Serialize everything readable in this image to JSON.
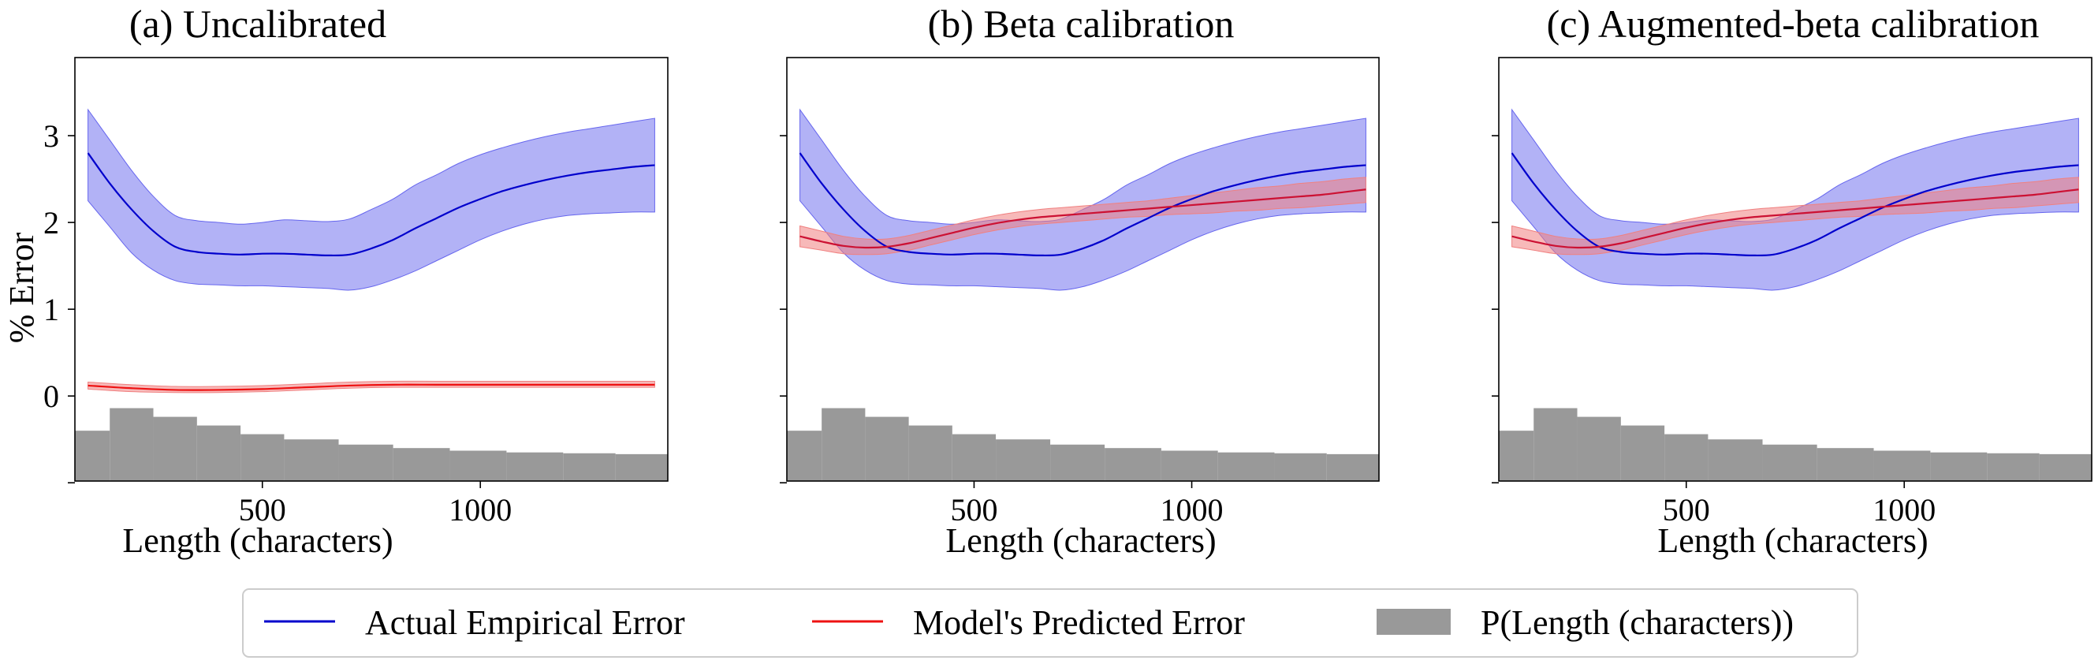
{
  "chart_data": [
    {
      "type": "line",
      "title": "(a) Uncalibrated",
      "xlabel": "Length (characters)",
      "ylabel": "% Error",
      "xlim": [
        70,
        1430
      ],
      "ylim": [
        -0.98,
        3.9
      ],
      "xticks": [
        500,
        1000
      ],
      "xtick_labels": [
        "500",
        "1000"
      ],
      "yticks": [
        -1,
        0,
        1,
        2,
        3
      ],
      "ytick_labels": [
        "",
        "0",
        "1",
        "2",
        "3"
      ],
      "series": [
        {
          "name": "Actual Empirical Error",
          "color": "#0000cc",
          "band_color": "#6666ee",
          "x": [
            100,
            150,
            200,
            250,
            300,
            350,
            400,
            450,
            500,
            550,
            600,
            650,
            700,
            750,
            800,
            850,
            900,
            950,
            1000,
            1050,
            1100,
            1150,
            1200,
            1250,
            1300,
            1350,
            1400
          ],
          "y": [
            2.8,
            2.45,
            2.15,
            1.9,
            1.72,
            1.66,
            1.64,
            1.63,
            1.64,
            1.64,
            1.63,
            1.62,
            1.63,
            1.7,
            1.8,
            1.93,
            2.05,
            2.17,
            2.27,
            2.36,
            2.43,
            2.49,
            2.54,
            2.58,
            2.61,
            2.64,
            2.66
          ],
          "lower": [
            2.25,
            1.95,
            1.65,
            1.45,
            1.33,
            1.29,
            1.28,
            1.27,
            1.27,
            1.26,
            1.25,
            1.24,
            1.22,
            1.26,
            1.34,
            1.44,
            1.56,
            1.68,
            1.8,
            1.9,
            1.98,
            2.04,
            2.08,
            2.1,
            2.11,
            2.12,
            2.12
          ],
          "upper": [
            3.3,
            2.95,
            2.6,
            2.3,
            2.08,
            2.02,
            2.0,
            1.98,
            2.0,
            2.03,
            2.02,
            2.01,
            2.04,
            2.15,
            2.27,
            2.43,
            2.55,
            2.68,
            2.78,
            2.86,
            2.93,
            2.99,
            3.04,
            3.08,
            3.12,
            3.16,
            3.2
          ]
        },
        {
          "name": "Model's Predicted Error",
          "color": "#ee1111",
          "band_color": "#f08080",
          "x": [
            100,
            200,
            300,
            400,
            500,
            600,
            700,
            800,
            900,
            1000,
            1100,
            1200,
            1300,
            1400
          ],
          "y": [
            0.12,
            0.09,
            0.07,
            0.07,
            0.08,
            0.1,
            0.12,
            0.13,
            0.13,
            0.13,
            0.13,
            0.13,
            0.13,
            0.13
          ],
          "lower": [
            0.08,
            0.05,
            0.04,
            0.04,
            0.05,
            0.07,
            0.09,
            0.1,
            0.1,
            0.1,
            0.1,
            0.1,
            0.1,
            0.1
          ],
          "upper": [
            0.16,
            0.13,
            0.11,
            0.11,
            0.12,
            0.14,
            0.16,
            0.17,
            0.17,
            0.17,
            0.17,
            0.17,
            0.17,
            0.17
          ]
        }
      ],
      "histogram": {
        "name": "P(Length (characters))",
        "color": "#999999",
        "bin_edges": [
          70,
          150,
          250,
          350,
          450,
          550,
          675,
          800,
          930,
          1060,
          1190,
          1310,
          1430
        ],
        "values": [
          -0.4,
          -0.14,
          -0.24,
          -0.34,
          -0.44,
          -0.5,
          -0.56,
          -0.6,
          -0.63,
          -0.65,
          -0.66,
          -0.67
        ]
      }
    },
    {
      "type": "line",
      "title": "(b) Beta calibration",
      "xlabel": "Length (characters)",
      "ylabel": "",
      "xlim": [
        70,
        1430
      ],
      "ylim": [
        -0.98,
        3.9
      ],
      "xticks": [
        500,
        1000
      ],
      "xtick_labels": [
        "500",
        "1000"
      ],
      "yticks": [
        -1,
        0,
        1,
        2,
        3
      ],
      "ytick_labels": [
        "",
        "",
        "",
        "",
        ""
      ],
      "series": [
        {
          "name": "Actual Empirical Error",
          "color": "#0000cc",
          "band_color": "#6666ee",
          "x": [
            100,
            150,
            200,
            250,
            300,
            350,
            400,
            450,
            500,
            550,
            600,
            650,
            700,
            750,
            800,
            850,
            900,
            950,
            1000,
            1050,
            1100,
            1150,
            1200,
            1250,
            1300,
            1350,
            1400
          ],
          "y": [
            2.8,
            2.45,
            2.15,
            1.9,
            1.72,
            1.66,
            1.64,
            1.63,
            1.64,
            1.64,
            1.63,
            1.62,
            1.63,
            1.7,
            1.8,
            1.93,
            2.05,
            2.17,
            2.27,
            2.36,
            2.43,
            2.49,
            2.54,
            2.58,
            2.61,
            2.64,
            2.66
          ],
          "lower": [
            2.25,
            1.95,
            1.65,
            1.45,
            1.33,
            1.29,
            1.28,
            1.27,
            1.27,
            1.26,
            1.25,
            1.24,
            1.22,
            1.26,
            1.34,
            1.44,
            1.56,
            1.68,
            1.8,
            1.9,
            1.98,
            2.04,
            2.08,
            2.1,
            2.11,
            2.12,
            2.12
          ],
          "upper": [
            3.3,
            2.95,
            2.6,
            2.3,
            2.08,
            2.02,
            2.0,
            1.98,
            2.0,
            2.03,
            2.02,
            2.01,
            2.04,
            2.15,
            2.27,
            2.43,
            2.55,
            2.68,
            2.78,
            2.86,
            2.93,
            2.99,
            3.04,
            3.08,
            3.12,
            3.16,
            3.2
          ]
        },
        {
          "name": "Model's Predicted Error",
          "color": "#cc1133",
          "band_color": "#f08080",
          "x": [
            100,
            150,
            200,
            250,
            300,
            350,
            400,
            450,
            500,
            550,
            600,
            650,
            700,
            750,
            800,
            850,
            900,
            950,
            1000,
            1050,
            1100,
            1150,
            1200,
            1250,
            1300,
            1350,
            1400
          ],
          "y": [
            1.84,
            1.78,
            1.73,
            1.71,
            1.72,
            1.76,
            1.82,
            1.88,
            1.94,
            1.99,
            2.03,
            2.06,
            2.08,
            2.1,
            2.12,
            2.14,
            2.16,
            2.18,
            2.2,
            2.22,
            2.24,
            2.26,
            2.28,
            2.3,
            2.32,
            2.35,
            2.38
          ],
          "lower": [
            1.72,
            1.68,
            1.64,
            1.63,
            1.64,
            1.68,
            1.74,
            1.8,
            1.86,
            1.91,
            1.95,
            1.98,
            2.0,
            2.02,
            2.04,
            2.06,
            2.07,
            2.09,
            2.1,
            2.11,
            2.13,
            2.14,
            2.16,
            2.17,
            2.19,
            2.21,
            2.23
          ],
          "upper": [
            1.96,
            1.9,
            1.84,
            1.81,
            1.81,
            1.85,
            1.91,
            1.97,
            2.03,
            2.08,
            2.12,
            2.15,
            2.17,
            2.19,
            2.21,
            2.23,
            2.25,
            2.28,
            2.31,
            2.34,
            2.37,
            2.4,
            2.42,
            2.45,
            2.47,
            2.5,
            2.52
          ]
        }
      ],
      "histogram": {
        "name": "P(Length (characters))",
        "color": "#999999",
        "bin_edges": [
          70,
          150,
          250,
          350,
          450,
          550,
          675,
          800,
          930,
          1060,
          1190,
          1310,
          1430
        ],
        "values": [
          -0.4,
          -0.14,
          -0.24,
          -0.34,
          -0.44,
          -0.5,
          -0.56,
          -0.6,
          -0.63,
          -0.65,
          -0.66,
          -0.67
        ]
      }
    },
    {
      "type": "line",
      "title": "(c) Augmented-beta calibration",
      "xlabel": "Length (characters)",
      "ylabel": "",
      "xlim": [
        70,
        1430
      ],
      "ylim": [
        -0.98,
        3.9
      ],
      "xticks": [
        500,
        1000
      ],
      "xtick_labels": [
        "500",
        "1000"
      ],
      "yticks": [
        -1,
        0,
        1,
        2,
        3
      ],
      "ytick_labels": [
        "",
        "",
        "",
        "",
        ""
      ],
      "series": [
        {
          "name": "Actual Empirical Error",
          "color": "#0000cc",
          "band_color": "#6666ee",
          "x": [
            100,
            150,
            200,
            250,
            300,
            350,
            400,
            450,
            500,
            550,
            600,
            650,
            700,
            750,
            800,
            850,
            900,
            950,
            1000,
            1050,
            1100,
            1150,
            1200,
            1250,
            1300,
            1350,
            1400
          ],
          "y": [
            2.8,
            2.45,
            2.15,
            1.9,
            1.72,
            1.66,
            1.64,
            1.63,
            1.64,
            1.64,
            1.63,
            1.62,
            1.63,
            1.7,
            1.8,
            1.93,
            2.05,
            2.17,
            2.27,
            2.36,
            2.43,
            2.49,
            2.54,
            2.58,
            2.61,
            2.64,
            2.66
          ],
          "lower": [
            2.25,
            1.95,
            1.65,
            1.45,
            1.33,
            1.29,
            1.28,
            1.27,
            1.27,
            1.26,
            1.25,
            1.24,
            1.22,
            1.26,
            1.34,
            1.44,
            1.56,
            1.68,
            1.8,
            1.9,
            1.98,
            2.04,
            2.08,
            2.1,
            2.11,
            2.12,
            2.12
          ],
          "upper": [
            3.3,
            2.95,
            2.6,
            2.3,
            2.08,
            2.02,
            2.0,
            1.98,
            2.0,
            2.03,
            2.02,
            2.01,
            2.04,
            2.15,
            2.27,
            2.43,
            2.55,
            2.68,
            2.78,
            2.86,
            2.93,
            2.99,
            3.04,
            3.08,
            3.12,
            3.16,
            3.2
          ]
        },
        {
          "name": "Model's Predicted Error",
          "color": "#cc1133",
          "band_color": "#f08080",
          "x": [
            100,
            150,
            200,
            250,
            300,
            350,
            400,
            450,
            500,
            550,
            600,
            650,
            700,
            750,
            800,
            850,
            900,
            950,
            1000,
            1050,
            1100,
            1150,
            1200,
            1250,
            1300,
            1350,
            1400
          ],
          "y": [
            1.84,
            1.78,
            1.73,
            1.71,
            1.72,
            1.76,
            1.82,
            1.88,
            1.94,
            1.99,
            2.03,
            2.06,
            2.08,
            2.1,
            2.12,
            2.14,
            2.16,
            2.18,
            2.2,
            2.22,
            2.24,
            2.26,
            2.28,
            2.3,
            2.32,
            2.35,
            2.38
          ],
          "lower": [
            1.72,
            1.68,
            1.64,
            1.63,
            1.64,
            1.68,
            1.74,
            1.8,
            1.86,
            1.91,
            1.95,
            1.98,
            2.0,
            2.02,
            2.04,
            2.06,
            2.07,
            2.09,
            2.1,
            2.11,
            2.13,
            2.14,
            2.16,
            2.17,
            2.19,
            2.21,
            2.23
          ],
          "upper": [
            1.96,
            1.9,
            1.84,
            1.81,
            1.81,
            1.85,
            1.91,
            1.97,
            2.03,
            2.08,
            2.12,
            2.15,
            2.17,
            2.19,
            2.21,
            2.23,
            2.25,
            2.28,
            2.31,
            2.34,
            2.37,
            2.4,
            2.42,
            2.45,
            2.47,
            2.5,
            2.52
          ]
        }
      ],
      "histogram": {
        "name": "P(Length (characters))",
        "color": "#999999",
        "bin_edges": [
          70,
          150,
          250,
          350,
          450,
          550,
          675,
          800,
          930,
          1060,
          1190,
          1310,
          1430
        ],
        "values": [
          -0.4,
          -0.14,
          -0.24,
          -0.34,
          -0.44,
          -0.5,
          -0.56,
          -0.6,
          -0.63,
          -0.65,
          -0.66,
          -0.67
        ]
      }
    }
  ],
  "legend": {
    "placement": "bottom-center",
    "items": [
      {
        "label": "Actual Empirical Error",
        "kind": "line",
        "color": "#0000cc"
      },
      {
        "label": "Model's Predicted Error",
        "kind": "line",
        "color": "#ee1111"
      },
      {
        "label": "P(Length (characters))",
        "kind": "patch",
        "color": "#999999"
      }
    ]
  }
}
